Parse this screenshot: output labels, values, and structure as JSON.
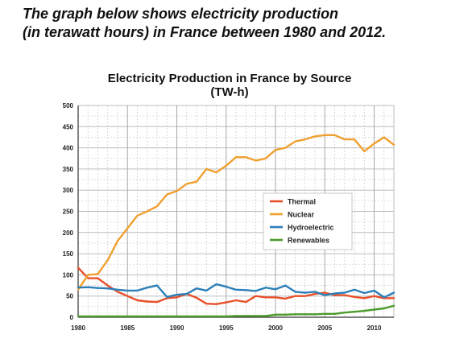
{
  "intro": {
    "line1": "The graph below shows electricity production",
    "line2": "(in terawatt hours) in France between 1980 and 2012."
  },
  "chart_data": {
    "type": "line",
    "title_line1": "Electricity Production in France by Source",
    "title_line2": "(TW-h)",
    "xlabel": "",
    "ylabel": "",
    "xlim": [
      1980,
      2012
    ],
    "ylim": [
      0,
      500
    ],
    "x_ticks": [
      1980,
      1985,
      1990,
      1995,
      2000,
      2005,
      2010
    ],
    "y_ticks": [
      0,
      50,
      100,
      150,
      200,
      250,
      300,
      350,
      400,
      450,
      500
    ],
    "grid": true,
    "legend_position": "center-right",
    "x": [
      1980,
      1981,
      1982,
      1983,
      1984,
      1985,
      1986,
      1987,
      1988,
      1989,
      1990,
      1991,
      1992,
      1993,
      1994,
      1995,
      1996,
      1997,
      1998,
      1999,
      2000,
      2001,
      2002,
      2003,
      2004,
      2005,
      2006,
      2007,
      2008,
      2009,
      2010,
      2011,
      2012
    ],
    "series": [
      {
        "name": "Thermal",
        "color": "#e8502a",
        "values": [
          117,
          92,
          92,
          75,
          60,
          50,
          40,
          37,
          36,
          45,
          47,
          55,
          46,
          32,
          31,
          35,
          40,
          36,
          50,
          47,
          47,
          44,
          50,
          50,
          55,
          58,
          52,
          52,
          48,
          45,
          50,
          45,
          45
        ]
      },
      {
        "name": "Nuclear",
        "color": "#f0a030",
        "values": [
          65,
          100,
          102,
          135,
          180,
          210,
          240,
          250,
          262,
          290,
          298,
          315,
          320,
          350,
          342,
          358,
          378,
          378,
          370,
          375,
          395,
          400,
          415,
          420,
          427,
          430,
          430,
          420,
          420,
          392,
          410,
          425,
          407
        ]
      },
      {
        "name": "Hydroelectric",
        "color": "#2c7fb8",
        "values": [
          70,
          71,
          69,
          68,
          65,
          63,
          63,
          70,
          75,
          48,
          53,
          55,
          68,
          63,
          78,
          72,
          65,
          64,
          62,
          70,
          66,
          75,
          60,
          58,
          60,
          52,
          56,
          58,
          65,
          57,
          63,
          47,
          58
        ]
      },
      {
        "name": "Renewables",
        "color": "#4c9a2a",
        "values": [
          2,
          2,
          2,
          2,
          2,
          2,
          2,
          2,
          2,
          2,
          2,
          2,
          2,
          2,
          2,
          2,
          3,
          3,
          3,
          3,
          6,
          6,
          7,
          7,
          7,
          8,
          8,
          11,
          13,
          15,
          18,
          21,
          27
        ]
      }
    ]
  }
}
